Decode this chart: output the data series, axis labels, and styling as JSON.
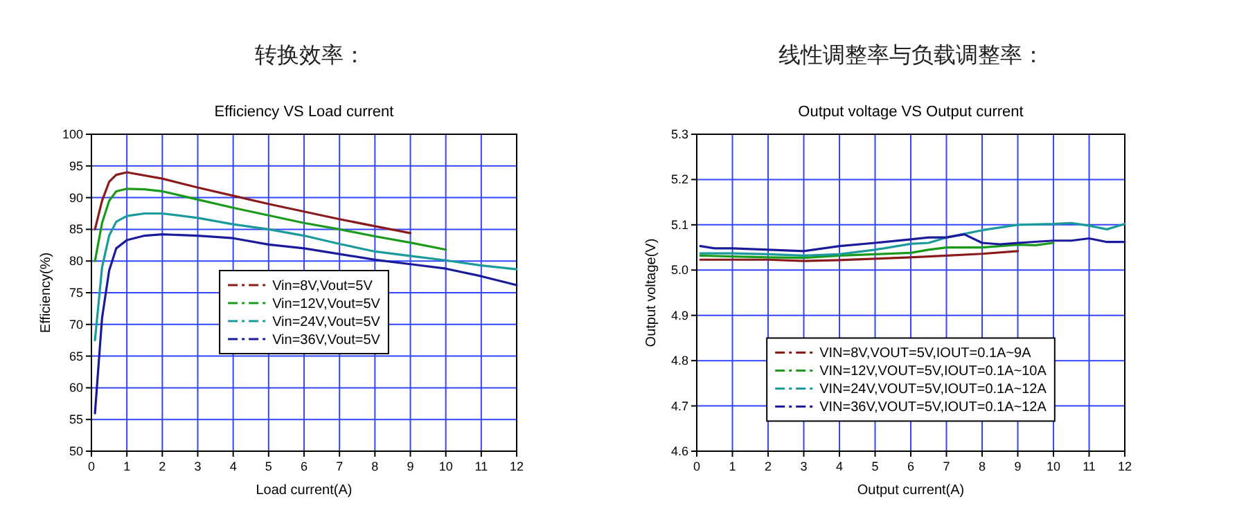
{
  "chart_data": [
    {
      "type": "line",
      "title": "转换效率：",
      "subtitle": "Efficiency VS Load current",
      "xlabel": "Load current(A)",
      "ylabel": "Efficiency(%)",
      "xlim": [
        0,
        12
      ],
      "ylim": [
        50,
        100
      ],
      "xticks": [
        0,
        1,
        2,
        3,
        4,
        5,
        6,
        7,
        8,
        9,
        10,
        11,
        12
      ],
      "yticks": [
        50,
        55,
        60,
        65,
        70,
        75,
        80,
        85,
        90,
        95,
        100
      ],
      "grid": true,
      "legend": "center",
      "line_style": "solid",
      "series": [
        {
          "name": "Vin=8V,Vout=5V",
          "color": "#8b1a1a",
          "x": [
            0.1,
            0.3,
            0.5,
            0.7,
            1,
            2,
            3,
            4,
            5,
            6,
            7,
            8,
            9
          ],
          "values": [
            85,
            89.5,
            92.5,
            93.6,
            94,
            93,
            91.6,
            90.3,
            89,
            87.8,
            86.6,
            85.5,
            84.4
          ]
        },
        {
          "name": "Vin=12V,Vout=5V",
          "color": "#1a9a1a",
          "x": [
            0.1,
            0.3,
            0.5,
            0.7,
            1,
            1.5,
            2,
            3,
            4,
            5,
            6,
            7,
            8,
            9,
            10
          ],
          "values": [
            80,
            86,
            89.5,
            91,
            91.4,
            91.3,
            91,
            89.7,
            88.4,
            87.2,
            86,
            85,
            83.9,
            82.9,
            81.8
          ]
        },
        {
          "name": "Vin=24V,Vout=5V",
          "color": "#1a9a9a",
          "x": [
            0.1,
            0.3,
            0.5,
            0.7,
            1,
            1.5,
            2,
            3,
            4,
            5,
            6,
            7,
            8,
            9,
            10,
            11,
            12
          ],
          "values": [
            67.5,
            79,
            84,
            86.2,
            87.1,
            87.5,
            87.5,
            86.8,
            85.8,
            85,
            84,
            82.7,
            81.5,
            80.8,
            80.1,
            79.3,
            78.7
          ]
        },
        {
          "name": "Vin=36V,Vout=5V",
          "color": "#1a1a9a",
          "x": [
            0.1,
            0.3,
            0.5,
            0.7,
            1,
            1.5,
            2,
            3,
            4,
            5,
            6,
            7,
            8,
            9,
            10,
            11,
            12
          ],
          "values": [
            56,
            71,
            78.5,
            82,
            83.3,
            84,
            84.2,
            84,
            83.6,
            82.6,
            82,
            81.1,
            80.2,
            79.5,
            78.8,
            77.6,
            76.2
          ]
        }
      ]
    },
    {
      "type": "line",
      "title": "线性调整率与负载调整率：",
      "subtitle": "Output voltage VS Output current",
      "xlabel": "Output current(A)",
      "ylabel": "Output voltage(V)",
      "xlim": [
        0,
        12
      ],
      "ylim": [
        4.6,
        5.3
      ],
      "xticks": [
        0,
        1,
        2,
        3,
        4,
        5,
        6,
        7,
        8,
        9,
        10,
        11,
        12
      ],
      "yticks": [
        {
          "value": 4.6,
          "label": "4.6"
        },
        {
          "value": 4.7,
          "label": "4.7"
        },
        {
          "value": 4.8,
          "label": "4.8"
        },
        {
          "value": 4.9,
          "label": "4.9"
        },
        {
          "value": 5,
          "label": "5.0"
        },
        {
          "value": 5.1,
          "label": "5.1"
        },
        {
          "value": 5.2,
          "label": "5.2"
        },
        {
          "value": 5.3,
          "label": "5.3"
        }
      ],
      "grid": true,
      "legend": "bottom",
      "line_style": "solid",
      "series": [
        {
          "name": "VIN=8V,VOUT=5V,IOUT=0.1A~9A",
          "color": "#8b1a1a",
          "x": [
            0.1,
            1,
            2,
            3,
            4,
            5,
            6,
            7,
            8,
            9
          ],
          "values": [
            5.023,
            5.023,
            5.023,
            5.02,
            5.022,
            5.025,
            5.028,
            5.032,
            5.036,
            5.042
          ]
        },
        {
          "name": "VIN=12V,VOUT=5V,IOUT=0.1A~10A",
          "color": "#1a9a1a",
          "x": [
            0.1,
            1,
            2,
            3,
            4,
            5,
            6,
            6.5,
            7,
            8,
            9,
            9.5,
            10
          ],
          "values": [
            5.032,
            5.03,
            5.028,
            5.027,
            5.032,
            5.035,
            5.038,
            5.045,
            5.05,
            5.05,
            5.056,
            5.055,
            5.06
          ]
        },
        {
          "name": "VIN=24V,VOUT=5V,IOUT=0.1A~12A",
          "color": "#1a9a9a",
          "x": [
            0.1,
            1,
            2,
            3,
            4,
            5,
            6,
            6.5,
            7,
            8,
            9,
            10,
            10.5,
            11,
            11.5,
            12
          ],
          "values": [
            5.037,
            5.037,
            5.035,
            5.032,
            5.035,
            5.045,
            5.058,
            5.06,
            5.072,
            5.088,
            5.1,
            5.102,
            5.104,
            5.098,
            5.09,
            5.102
          ]
        },
        {
          "name": "VIN=36V,VOUT=5V,IOUT=0.1A~12A",
          "color": "#1a1a9a",
          "x": [
            0.1,
            0.5,
            1,
            2,
            3,
            4,
            5,
            6,
            6.5,
            7,
            7.5,
            8,
            8.5,
            9,
            10,
            10.5,
            11,
            11.5,
            12
          ],
          "values": [
            5.053,
            5.048,
            5.048,
            5.045,
            5.042,
            5.053,
            5.06,
            5.068,
            5.072,
            5.072,
            5.079,
            5.06,
            5.057,
            5.06,
            5.065,
            5.065,
            5.07,
            5.062,
            5.062
          ]
        }
      ]
    }
  ]
}
